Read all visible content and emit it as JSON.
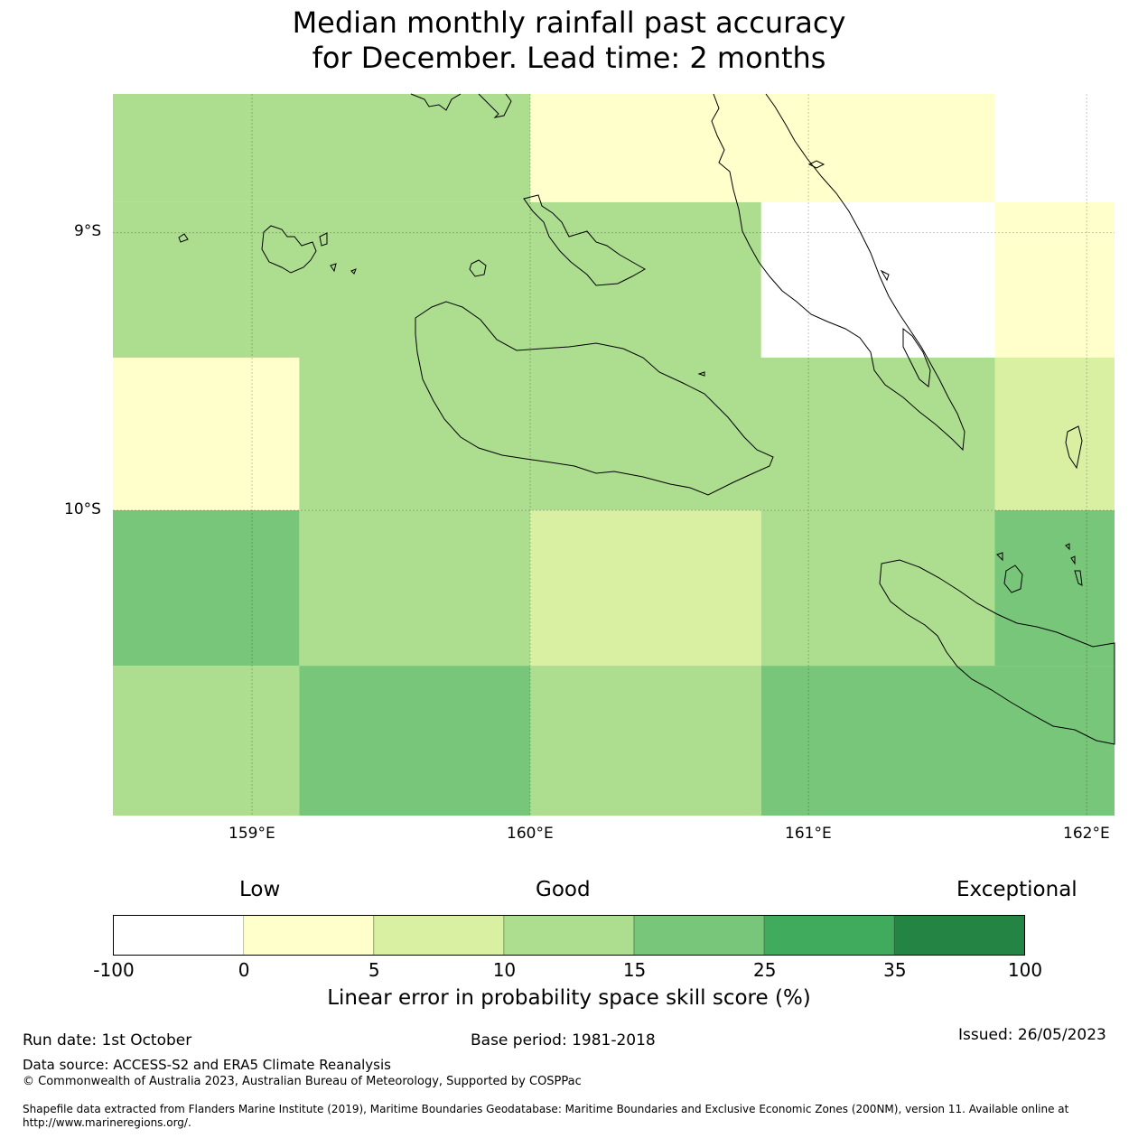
{
  "title": {
    "line1": "Median monthly rainfall past accuracy",
    "line2": "for December. Lead time: 2 months"
  },
  "map": {
    "lat_labels": [
      "9°S",
      "10°S"
    ],
    "lon_labels": [
      "159°E",
      "160°E",
      "161°E",
      "162°E"
    ],
    "lon_range": [
      158.5,
      162.1
    ],
    "lat_range": [
      -8.5,
      -11.1
    ],
    "grid_cells": [
      {
        "lon": [
          158.5,
          160.0
        ],
        "lat": [
          -8.5,
          -8.89
        ],
        "score_class": "10-15"
      },
      {
        "lon": [
          160.0,
          161.67
        ],
        "lat": [
          -8.5,
          -8.89
        ],
        "score_class": "0-5"
      },
      {
        "lon": [
          161.67,
          162.1
        ],
        "lat": [
          -8.5,
          -8.89
        ],
        "score_class": "none"
      },
      {
        "lon": [
          158.5,
          160.83
        ],
        "lat": [
          -8.89,
          -9.45
        ],
        "score_class": "10-15"
      },
      {
        "lon": [
          160.83,
          161.67
        ],
        "lat": [
          -8.89,
          -9.45
        ],
        "score_class": "-100-0"
      },
      {
        "lon": [
          161.67,
          162.1
        ],
        "lat": [
          -8.89,
          -9.45
        ],
        "score_class": "0-5"
      },
      {
        "lon": [
          158.5,
          159.17
        ],
        "lat": [
          -9.45,
          -10.0
        ],
        "score_class": "0-5"
      },
      {
        "lon": [
          159.17,
          161.67
        ],
        "lat": [
          -9.45,
          -10.0
        ],
        "score_class": "10-15"
      },
      {
        "lon": [
          161.67,
          162.1
        ],
        "lat": [
          -9.45,
          -10.0
        ],
        "score_class": "5-10"
      },
      {
        "lon": [
          158.5,
          159.17
        ],
        "lat": [
          -10.0,
          -10.56
        ],
        "score_class": "15-25"
      },
      {
        "lon": [
          159.17,
          160.0
        ],
        "lat": [
          -10.0,
          -10.56
        ],
        "score_class": "10-15"
      },
      {
        "lon": [
          160.0,
          160.83
        ],
        "lat": [
          -10.0,
          -10.56
        ],
        "score_class": "5-10"
      },
      {
        "lon": [
          160.83,
          161.67
        ],
        "lat": [
          -10.0,
          -10.56
        ],
        "score_class": "10-15"
      },
      {
        "lon": [
          161.67,
          162.1
        ],
        "lat": [
          -10.0,
          -10.56
        ],
        "score_class": "15-25"
      },
      {
        "lon": [
          158.5,
          159.17
        ],
        "lat": [
          -10.56,
          -11.1
        ],
        "score_class": "10-15"
      },
      {
        "lon": [
          159.17,
          160.0
        ],
        "lat": [
          -10.56,
          -11.1
        ],
        "score_class": "15-25"
      },
      {
        "lon": [
          160.0,
          160.83
        ],
        "lat": [
          -10.56,
          -11.1
        ],
        "score_class": "10-15"
      },
      {
        "lon": [
          160.83,
          162.1
        ],
        "lat": [
          -10.56,
          -11.1
        ],
        "score_class": "15-25"
      }
    ]
  },
  "colorbar": {
    "categories": [
      "Low",
      "Good",
      "Exceptional"
    ],
    "ticks": [
      "-100",
      "0",
      "5",
      "10",
      "15",
      "25",
      "35",
      "100"
    ],
    "bins": [
      {
        "range": "-100-0",
        "color": "#ffffff"
      },
      {
        "range": "0-5",
        "color": "#ffffcc"
      },
      {
        "range": "5-10",
        "color": "#d9f0a3"
      },
      {
        "range": "10-15",
        "color": "#addd8e"
      },
      {
        "range": "15-25",
        "color": "#78c679"
      },
      {
        "range": "25-35",
        "color": "#41ab5d"
      },
      {
        "range": "35-100",
        "color": "#238443"
      }
    ],
    "label": "Linear error in probability space skill score (%)"
  },
  "footer": {
    "run_date": "Run date: 1st October",
    "base_period": "Base period: 1981-2018",
    "issued": "Issued: 26/05/2023",
    "data_source": "Data source: ACCESS-S2 and ERA5 Climate Reanalysis",
    "copyright": "© Commonwealth of Australia 2023, Australian Bureau of Meteorology, Supported by COSPPac",
    "shapefile": "Shapefile data extracted from Flanders Marine Institute (2019), Maritime Boundaries Geodatabase: Maritime Boundaries and Exclusive Economic Zones (200NM), version 11. Available online at http://www.marineregions.org/."
  }
}
